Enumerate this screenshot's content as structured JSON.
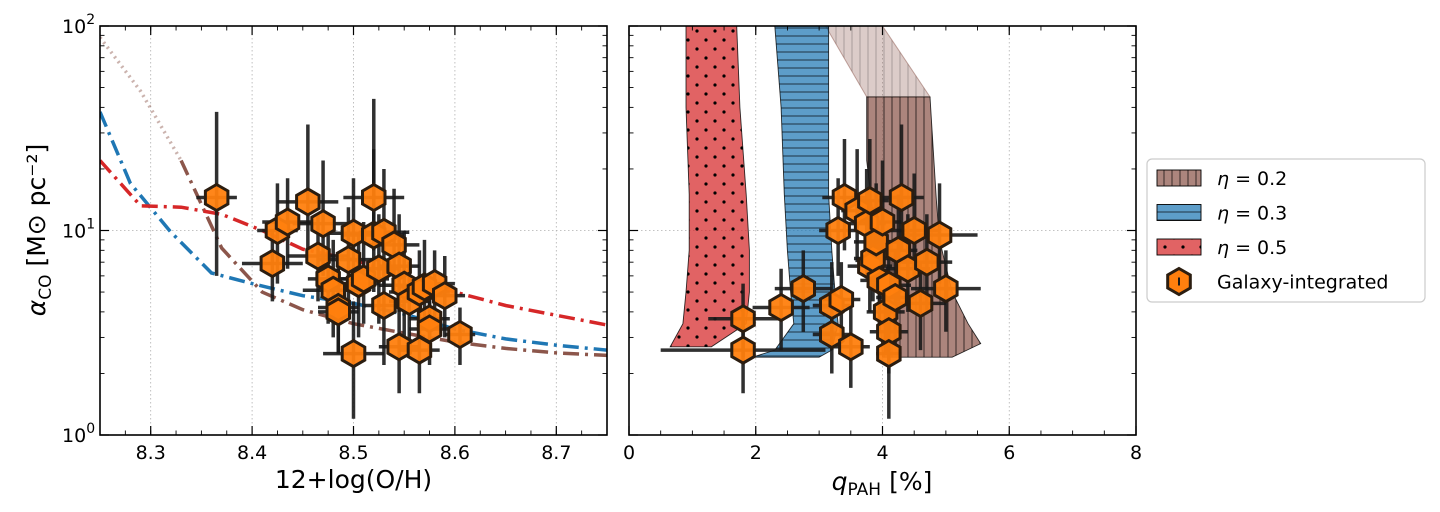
{
  "colors": {
    "eta02": "#8c564b",
    "eta03": "#1f77b4",
    "eta05": "#d62728",
    "marker": "#ff7f0e",
    "marker_edge": "#2b1d10",
    "errorbar": "#1a1a1a",
    "grid": "#b0b0b0"
  },
  "chart_data": [
    {
      "type": "scatter",
      "id": "left",
      "xlabel": "12+log(O/H)",
      "ylabel_main": "α",
      "ylabel_sub": "CO",
      "ylabel_units": "[M⊙ pc⁻²]",
      "xscale": "linear",
      "yscale": "log",
      "xlim": [
        8.25,
        8.75
      ],
      "ylim": [
        1,
        100
      ],
      "xticks": [
        8.3,
        8.4,
        8.5,
        8.6,
        8.7
      ],
      "xtick_labels": [
        "8.3",
        "8.4",
        "8.5",
        "8.6",
        "8.7"
      ],
      "yticks": [
        1,
        10,
        100
      ],
      "ytick_base": "10",
      "ytick_exponents": [
        "0",
        "1",
        "2"
      ],
      "grid": true,
      "lines": [
        {
          "name": "η=0.2 model",
          "color_key": "eta02",
          "style": "dashdot",
          "x": [
            8.25,
            8.29,
            8.33,
            8.37,
            8.41,
            8.45,
            8.5,
            8.55,
            8.6,
            8.65,
            8.7,
            8.75
          ],
          "y": [
            88,
            48,
            22,
            8.2,
            5.0,
            4.1,
            3.5,
            3.15,
            2.85,
            2.65,
            2.52,
            2.45
          ]
        },
        {
          "name": "η=0.3 model",
          "color_key": "eta03",
          "style": "dashdot",
          "x": [
            8.25,
            8.28,
            8.32,
            8.36,
            8.4,
            8.45,
            8.5,
            8.55,
            8.6,
            8.65,
            8.7,
            8.75
          ],
          "y": [
            38,
            17,
            9.8,
            6.2,
            5.5,
            4.8,
            4.4,
            3.9,
            3.3,
            2.95,
            2.75,
            2.6
          ]
        },
        {
          "name": "η=0.5 model",
          "color_key": "eta05",
          "style": "dashdot",
          "x": [
            8.25,
            8.29,
            8.33,
            8.37,
            8.41,
            8.45,
            8.5,
            8.55,
            8.6,
            8.65,
            8.7,
            8.75
          ],
          "y": [
            22,
            13.2,
            13.0,
            12.0,
            10.0,
            8.1,
            7.2,
            6.0,
            5.0,
            4.3,
            3.85,
            3.45
          ]
        }
      ],
      "points": [
        {
          "x": 8.365,
          "y": 14.5,
          "xerr": 0.02,
          "ylo": 6.0,
          "yhi": 38
        },
        {
          "x": 8.425,
          "y": 10.0,
          "xerr": 0.02,
          "ylo": 5.5,
          "yhi": 17
        },
        {
          "x": 8.435,
          "y": 11.0,
          "xerr": 0.025,
          "ylo": 6.5,
          "yhi": 18
        },
        {
          "x": 8.42,
          "y": 6.9,
          "xerr": 0.03,
          "ylo": 4.5,
          "yhi": 10
        },
        {
          "x": 8.455,
          "y": 13.8,
          "xerr": 0.03,
          "ylo": 8.0,
          "yhi": 33
        },
        {
          "x": 8.47,
          "y": 10.8,
          "xerr": 0.03,
          "ylo": 6.0,
          "yhi": 22
        },
        {
          "x": 8.465,
          "y": 7.5,
          "xerr": 0.03,
          "ylo": 4.5,
          "yhi": 12
        },
        {
          "x": 8.475,
          "y": 5.8,
          "xerr": 0.02,
          "ylo": 3.5,
          "yhi": 10
        },
        {
          "x": 8.48,
          "y": 5.1,
          "xerr": 0.03,
          "ylo": 3.0,
          "yhi": 9
        },
        {
          "x": 8.485,
          "y": 4.2,
          "xerr": 0.02,
          "ylo": 2.5,
          "yhi": 7
        },
        {
          "x": 8.485,
          "y": 4.0,
          "xerr": 0.02,
          "ylo": 2.5,
          "yhi": 6.5
        },
        {
          "x": 8.495,
          "y": 7.2,
          "xerr": 0.03,
          "ylo": 4.0,
          "yhi": 13
        },
        {
          "x": 8.5,
          "y": 9.7,
          "xerr": 0.025,
          "ylo": 6.0,
          "yhi": 18
        },
        {
          "x": 8.5,
          "y": 2.5,
          "xerr": 0.03,
          "ylo": 1.2,
          "yhi": 4.5
        },
        {
          "x": 8.505,
          "y": 5.5,
          "xerr": 0.02,
          "ylo": 3.0,
          "yhi": 9.5
        },
        {
          "x": 8.51,
          "y": 5.8,
          "xerr": 0.025,
          "ylo": 3.5,
          "yhi": 11
        },
        {
          "x": 8.52,
          "y": 14.5,
          "xerr": 0.03,
          "ylo": 8.0,
          "yhi": 25
        },
        {
          "x": 8.52,
          "y": 9.5,
          "xerr": 0.03,
          "ylo": 5.0,
          "yhi": 44
        },
        {
          "x": 8.525,
          "y": 6.5,
          "xerr": 0.02,
          "ylo": 3.5,
          "yhi": 12
        },
        {
          "x": 8.53,
          "y": 9.8,
          "xerr": 0.025,
          "ylo": 5.5,
          "yhi": 20
        },
        {
          "x": 8.53,
          "y": 4.3,
          "xerr": 0.02,
          "ylo": 2.2,
          "yhi": 7
        },
        {
          "x": 8.54,
          "y": 8.5,
          "xerr": 0.025,
          "ylo": 5.0,
          "yhi": 16
        },
        {
          "x": 8.545,
          "y": 6.7,
          "xerr": 0.02,
          "ylo": 4.0,
          "yhi": 12
        },
        {
          "x": 8.545,
          "y": 2.7,
          "xerr": 0.02,
          "ylo": 1.6,
          "yhi": 4.5
        },
        {
          "x": 8.55,
          "y": 5.4,
          "xerr": 0.025,
          "ylo": 3.0,
          "yhi": 10
        },
        {
          "x": 8.555,
          "y": 4.5,
          "xerr": 0.02,
          "ylo": 2.5,
          "yhi": 7
        },
        {
          "x": 8.565,
          "y": 5.0,
          "xerr": 0.03,
          "ylo": 3.0,
          "yhi": 8
        },
        {
          "x": 8.565,
          "y": 2.6,
          "xerr": 0.02,
          "ylo": 1.6,
          "yhi": 4
        },
        {
          "x": 8.57,
          "y": 5.3,
          "xerr": 0.025,
          "ylo": 3.5,
          "yhi": 9
        },
        {
          "x": 8.575,
          "y": 3.7,
          "xerr": 0.02,
          "ylo": 2.4,
          "yhi": 6
        },
        {
          "x": 8.575,
          "y": 3.3,
          "xerr": 0.02,
          "ylo": 2.2,
          "yhi": 5
        },
        {
          "x": 8.58,
          "y": 5.5,
          "xerr": 0.02,
          "ylo": 3.5,
          "yhi": 8
        },
        {
          "x": 8.59,
          "y": 4.8,
          "xerr": 0.02,
          "ylo": 3.0,
          "yhi": 7.5
        },
        {
          "x": 8.605,
          "y": 3.1,
          "xerr": 0.015,
          "ylo": 2.2,
          "yhi": 4.2
        }
      ]
    },
    {
      "type": "scatter",
      "id": "right",
      "xlabel_main": "q",
      "xlabel_sub": "PAH",
      "xlabel_units": "[%]",
      "xscale": "linear",
      "yscale": "log",
      "xlim": [
        0,
        8
      ],
      "ylim": [
        1,
        100
      ],
      "xticks": [
        0,
        2,
        4,
        6,
        8
      ],
      "xtick_labels": [
        "0",
        "2",
        "4",
        "6",
        "8"
      ],
      "grid": true,
      "bands": [
        {
          "name": "η = 0.2",
          "color_key": "eta02",
          "hatch": "vertical",
          "upper_segment": {
            "y_from": 45,
            "y_to": 100,
            "left": [
              [
                3.75,
                45
              ],
              [
                3.1,
                100
              ]
            ],
            "right": [
              [
                4.75,
                45
              ],
              [
                4.0,
                100
              ]
            ]
          },
          "left_edge": [
            [
              3.75,
              45
            ],
            [
              3.75,
              22
            ],
            [
              3.85,
              12
            ],
            [
              3.9,
              7
            ],
            [
              3.95,
              4
            ],
            [
              4.0,
              2.4
            ]
          ],
          "right_edge": [
            [
              4.75,
              45
            ],
            [
              4.8,
              25
            ],
            [
              4.85,
              14
            ],
            [
              4.9,
              9
            ],
            [
              5.1,
              5
            ],
            [
              5.35,
              3.5
            ],
            [
              5.55,
              2.8
            ],
            [
              5.1,
              2.4
            ]
          ]
        },
        {
          "name": "η = 0.3",
          "color_key": "eta03",
          "hatch": "horizontal",
          "left_edge": [
            [
              2.3,
              100
            ],
            [
              2.4,
              40
            ],
            [
              2.45,
              15
            ],
            [
              2.5,
              8
            ],
            [
              2.55,
              5
            ],
            [
              2.6,
              3.5
            ],
            [
              2.3,
              2.6
            ],
            [
              1.95,
              2.4
            ]
          ],
          "right_edge": [
            [
              3.15,
              100
            ],
            [
              3.15,
              40
            ],
            [
              3.15,
              15
            ],
            [
              3.2,
              8
            ],
            [
              3.25,
              5
            ],
            [
              3.3,
              3.5
            ],
            [
              3.2,
              2.6
            ],
            [
              3.0,
              2.4
            ]
          ]
        },
        {
          "name": "η = 0.5",
          "color_key": "eta05",
          "hatch": "dots",
          "left_edge": [
            [
              0.9,
              100
            ],
            [
              0.9,
              40
            ],
            [
              0.95,
              15
            ],
            [
              0.95,
              8
            ],
            [
              0.9,
              5
            ],
            [
              0.85,
              3.5
            ],
            [
              0.65,
              2.7
            ]
          ],
          "right_edge": [
            [
              1.7,
              100
            ],
            [
              1.75,
              40
            ],
            [
              1.85,
              15
            ],
            [
              1.9,
              8
            ],
            [
              1.9,
              5
            ],
            [
              1.85,
              3.5
            ],
            [
              1.3,
              2.7
            ]
          ]
        }
      ],
      "points": [
        {
          "x": 1.8,
          "y": 3.7,
          "xerr": 0.55,
          "ylo": 2.4,
          "yhi": 5.5
        },
        {
          "x": 1.8,
          "y": 2.6,
          "xerr": 1.3,
          "ylo": 1.6,
          "yhi": 3.6
        },
        {
          "x": 2.4,
          "y": 4.2,
          "xerr": 0.45,
          "ylo": 2.6,
          "yhi": 6.5
        },
        {
          "x": 2.75,
          "y": 5.2,
          "xerr": 0.45,
          "ylo": 3.2,
          "yhi": 8
        },
        {
          "x": 3.2,
          "y": 4.3,
          "xerr": 0.3,
          "ylo": 2.6,
          "yhi": 7
        },
        {
          "x": 3.2,
          "y": 3.1,
          "xerr": 0.3,
          "ylo": 2.0,
          "yhi": 4.6
        },
        {
          "x": 3.3,
          "y": 10.0,
          "xerr": 0.3,
          "ylo": 6.0,
          "yhi": 18
        },
        {
          "x": 3.35,
          "y": 4.6,
          "xerr": 0.3,
          "ylo": 2.8,
          "yhi": 7
        },
        {
          "x": 3.4,
          "y": 14.5,
          "xerr": 0.35,
          "ylo": 8.0,
          "yhi": 28
        },
        {
          "x": 3.5,
          "y": 2.7,
          "xerr": 0.3,
          "ylo": 1.7,
          "yhi": 4.2
        },
        {
          "x": 3.6,
          "y": 12.5,
          "xerr": 0.25,
          "ylo": 7.0,
          "yhi": 25
        },
        {
          "x": 3.75,
          "y": 10.8,
          "xerr": 0.3,
          "ylo": 6.0,
          "yhi": 20
        },
        {
          "x": 3.8,
          "y": 14.0,
          "xerr": 0.3,
          "ylo": 8.0,
          "yhi": 28
        },
        {
          "x": 3.8,
          "y": 6.7,
          "xerr": 0.35,
          "ylo": 4.0,
          "yhi": 12
        },
        {
          "x": 3.85,
          "y": 7.3,
          "xerr": 0.3,
          "ylo": 4.5,
          "yhi": 13
        },
        {
          "x": 3.9,
          "y": 8.8,
          "xerr": 0.35,
          "ylo": 5.0,
          "yhi": 17
        },
        {
          "x": 3.95,
          "y": 5.7,
          "xerr": 0.3,
          "ylo": 3.4,
          "yhi": 10
        },
        {
          "x": 4.0,
          "y": 11.0,
          "xerr": 0.3,
          "ylo": 6.5,
          "yhi": 22
        },
        {
          "x": 4.05,
          "y": 4.0,
          "xerr": 0.3,
          "ylo": 2.5,
          "yhi": 6.5
        },
        {
          "x": 4.1,
          "y": 3.2,
          "xerr": 0.3,
          "ylo": 2.0,
          "yhi": 5
        },
        {
          "x": 4.1,
          "y": 5.4,
          "xerr": 0.35,
          "ylo": 3.2,
          "yhi": 9
        },
        {
          "x": 4.1,
          "y": 2.5,
          "xerr": 0.2,
          "ylo": 1.2,
          "yhi": 4.2
        },
        {
          "x": 4.2,
          "y": 4.7,
          "xerr": 0.3,
          "ylo": 2.8,
          "yhi": 8
        },
        {
          "x": 4.25,
          "y": 8.0,
          "xerr": 0.3,
          "ylo": 4.5,
          "yhi": 15
        },
        {
          "x": 4.3,
          "y": 14.5,
          "xerr": 0.35,
          "ylo": 8.0,
          "yhi": 33
        },
        {
          "x": 4.4,
          "y": 6.5,
          "xerr": 0.35,
          "ylo": 4.0,
          "yhi": 12
        },
        {
          "x": 4.5,
          "y": 10.0,
          "xerr": 0.4,
          "ylo": 6.0,
          "yhi": 19
        },
        {
          "x": 4.6,
          "y": 4.4,
          "xerr": 0.4,
          "ylo": 2.6,
          "yhi": 7
        },
        {
          "x": 4.7,
          "y": 7.0,
          "xerr": 0.4,
          "ylo": 4.0,
          "yhi": 12
        },
        {
          "x": 4.9,
          "y": 9.5,
          "xerr": 0.6,
          "ylo": 5.5,
          "yhi": 17
        },
        {
          "x": 5.0,
          "y": 5.2,
          "xerr": 0.55,
          "ylo": 3.2,
          "yhi": 8
        }
      ]
    }
  ],
  "legend": {
    "items": [
      {
        "main": "η",
        "value": " = 0.2",
        "kind": "band",
        "color_key": "eta02",
        "hatch": "vertical"
      },
      {
        "main": "η",
        "value": " = 0.3",
        "kind": "band",
        "color_key": "eta03",
        "hatch": "horizontal"
      },
      {
        "main": "η",
        "value": " = 0.5",
        "kind": "band",
        "color_key": "eta05",
        "hatch": "dots"
      },
      {
        "main": "Galaxy-integrated",
        "value": "",
        "kind": "marker"
      }
    ],
    "placement": "right-outside"
  }
}
